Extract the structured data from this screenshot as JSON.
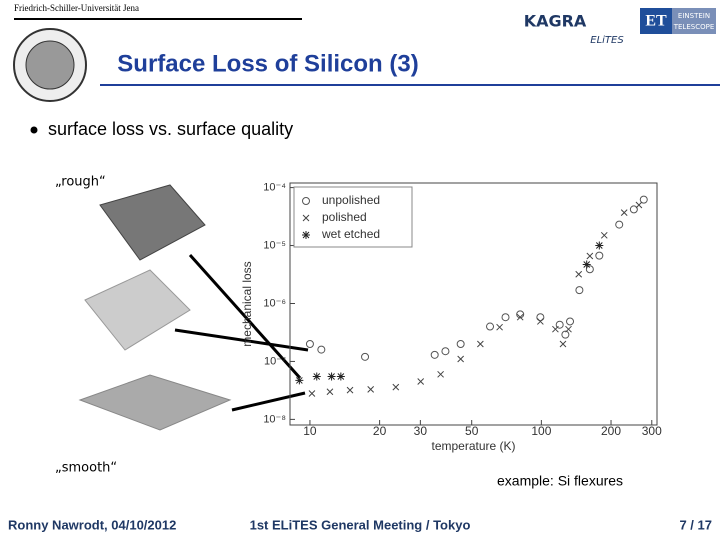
{
  "header": {
    "university": "Friedrich-Schiller-Universität Jena",
    "title": "Surface Loss of Silicon (3)",
    "logos": [
      "KAGRA",
      "ET",
      "EINSTEIN",
      "TELESCOPE",
      "ELiTES"
    ]
  },
  "slide": {
    "bullet": "surface loss vs. surface quality",
    "rough": "„rough“",
    "smooth": "„smooth“",
    "note": "example: Si flexures"
  },
  "footer": {
    "author": "Ronny Nawrodt, 04/10/2012",
    "event": "1st ELiTES General Meeting / Tokyo",
    "page": "7 / 17"
  },
  "chart_data": {
    "type": "scatter",
    "x_label": "temperature (K)",
    "y_label": "mechanical loss",
    "xscale": "log",
    "yscale": "log",
    "xlim": [
      8.2,
      316
    ],
    "ylim": [
      8e-09,
      0.00012
    ],
    "xticks": [
      10,
      20,
      30,
      50,
      100,
      200,
      300
    ],
    "yticks": [
      {
        "value": 1e-08,
        "label": "10⁻⁸"
      },
      {
        "value": 1e-07,
        "label": "10⁻⁷"
      },
      {
        "value": 1e-06,
        "label": "10⁻⁶"
      },
      {
        "value": 1e-05,
        "label": "10⁻⁵"
      },
      {
        "value": 0.0001,
        "label": "10⁻⁴"
      }
    ],
    "legend": "upper-left",
    "series": [
      {
        "name": "unpolished",
        "marker": "o",
        "color": "#555555",
        "x": [
          10,
          11.2,
          17.3,
          34.6,
          38.5,
          44.8,
          60,
          70,
          81,
          99,
          120,
          127,
          133,
          146,
          162,
          178,
          217,
          251,
          277
        ],
        "values": [
          2e-07,
          1.6e-07,
          1.2e-07,
          1.3e-07,
          1.5e-07,
          2e-07,
          4e-07,
          5.8e-07,
          6.5e-07,
          5.8e-07,
          4.3e-07,
          2.9e-07,
          4.9e-07,
          1.7e-06,
          3.9e-06,
          6.7e-06,
          2.3e-05,
          4.2e-05,
          6.2e-05
        ]
      },
      {
        "name": "polished",
        "marker": "x",
        "color": "#444444",
        "x": [
          10.2,
          12.2,
          14.9,
          18.3,
          23.5,
          30.1,
          36.7,
          44.8,
          54.5,
          66,
          81,
          99,
          115,
          124,
          131,
          145,
          162,
          187,
          228,
          264
        ],
        "values": [
          2.8e-08,
          3e-08,
          3.2e-08,
          3.3e-08,
          3.6e-08,
          4.5e-08,
          6e-08,
          1.1e-07,
          2e-07,
          3.9e-07,
          5.8e-07,
          4.9e-07,
          3.6e-07,
          2e-07,
          3.6e-07,
          3.2e-06,
          6.6e-06,
          1.5e-05,
          3.7e-05,
          5e-05
        ]
      },
      {
        "name": "wet etched",
        "marker": "*",
        "color": "#222222",
        "x": [
          9,
          10.7,
          12.4,
          13.6,
          157,
          178
        ],
        "values": [
          4.7e-08,
          5.5e-08,
          5.5e-08,
          5.5e-08,
          4.7e-06,
          1e-05
        ]
      }
    ]
  }
}
